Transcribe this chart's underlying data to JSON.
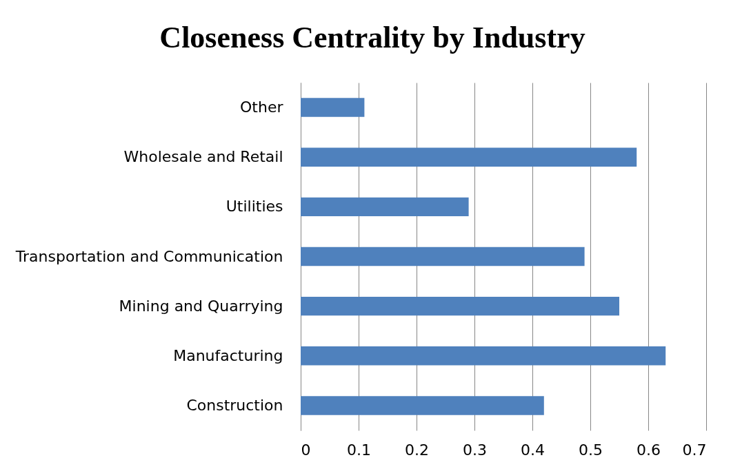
{
  "chart_data": {
    "type": "bar",
    "orientation": "horizontal",
    "title": "Closeness Centrality by Industry",
    "categories": [
      "Other",
      "Wholesale and Retail",
      "Utilities",
      "Transportation and Communication",
      "Mining and Quarrying",
      "Manufacturing",
      "Construction"
    ],
    "values": [
      0.11,
      0.58,
      0.29,
      0.49,
      0.55,
      0.63,
      0.42
    ],
    "color": "#4f81bd",
    "xlim": [
      0,
      0.7
    ],
    "xticks": [
      0,
      0.1,
      0.2,
      0.3,
      0.4,
      0.5,
      0.6,
      0.7
    ],
    "grid": "x"
  }
}
